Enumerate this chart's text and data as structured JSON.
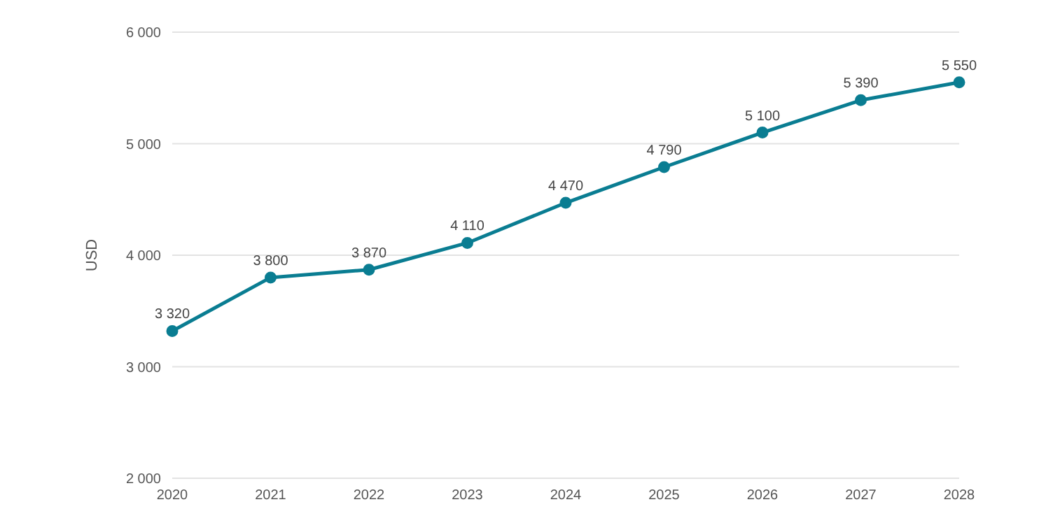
{
  "chart_data": {
    "type": "line",
    "ylabel": "USD",
    "categories": [
      "2020",
      "2021",
      "2022",
      "2023",
      "2024",
      "2025",
      "2026",
      "2027",
      "2028"
    ],
    "series": [
      {
        "color": "#0a7d92",
        "values": [
          3320,
          3800,
          3870,
          4110,
          4470,
          4790,
          5100,
          5390,
          5550
        ],
        "value_labels": [
          "3 320",
          "3 800",
          "3 870",
          "4 110",
          "4 470",
          "4 790",
          "5 100",
          "5 390",
          "5 550"
        ]
      }
    ],
    "ylim": [
      2000,
      6000
    ],
    "yticks": [
      {
        "value": 2000,
        "label": "2 000"
      },
      {
        "value": 3000,
        "label": "3 000"
      },
      {
        "value": 4000,
        "label": "4 000"
      },
      {
        "value": 5000,
        "label": "5 000"
      },
      {
        "value": 6000,
        "label": "6 000"
      }
    ],
    "grid": "y",
    "marker": "circle",
    "line_style": "solid",
    "legend": false
  }
}
